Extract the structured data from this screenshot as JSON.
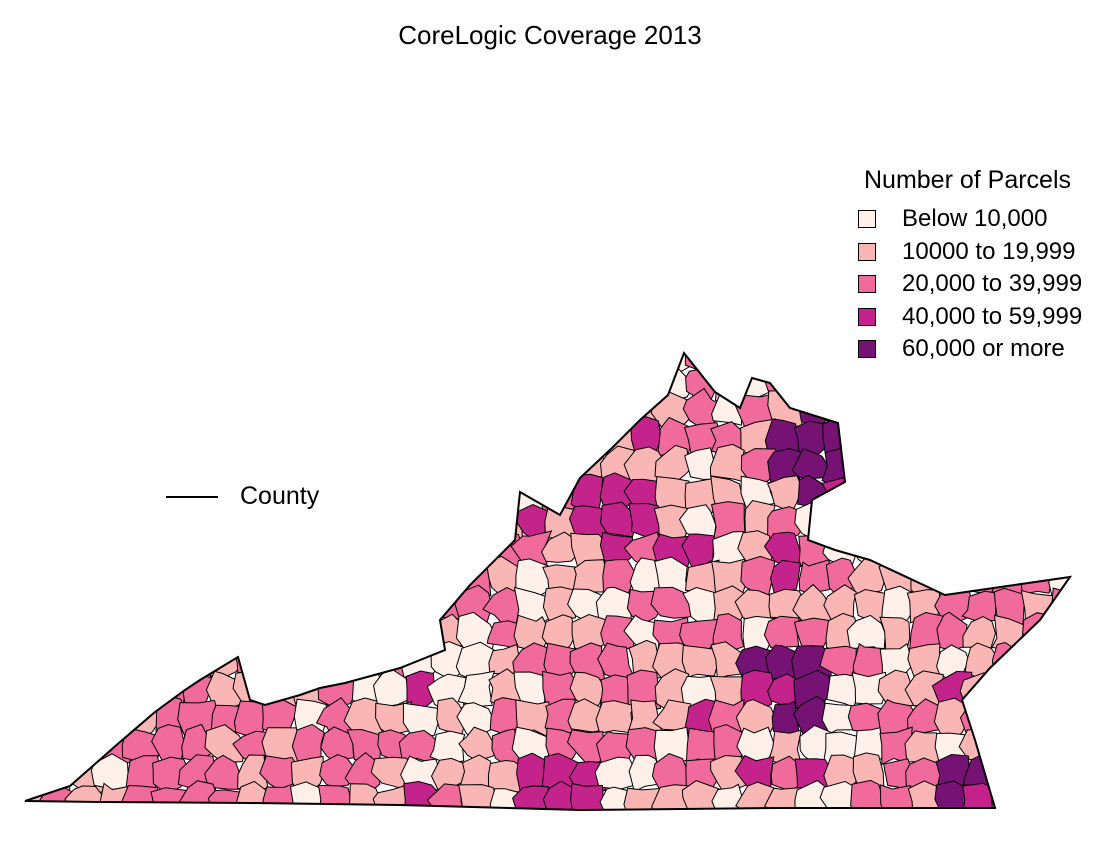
{
  "title": "CoreLogic Coverage 2013",
  "legend": {
    "title": "Number of Parcels",
    "items": [
      {
        "label": "Below 10,000",
        "color": "#fff0ea"
      },
      {
        "label": "10000 to 19,999",
        "color": "#f9b6b4"
      },
      {
        "label": "20,000 to 39,999",
        "color": "#f06a9c"
      },
      {
        "label": "40,000 to 59,999",
        "color": "#c5238c"
      },
      {
        "label": "60,000 or more",
        "color": "#771275"
      }
    ]
  },
  "county_key": {
    "label": "County",
    "line_color": "#000000"
  }
}
